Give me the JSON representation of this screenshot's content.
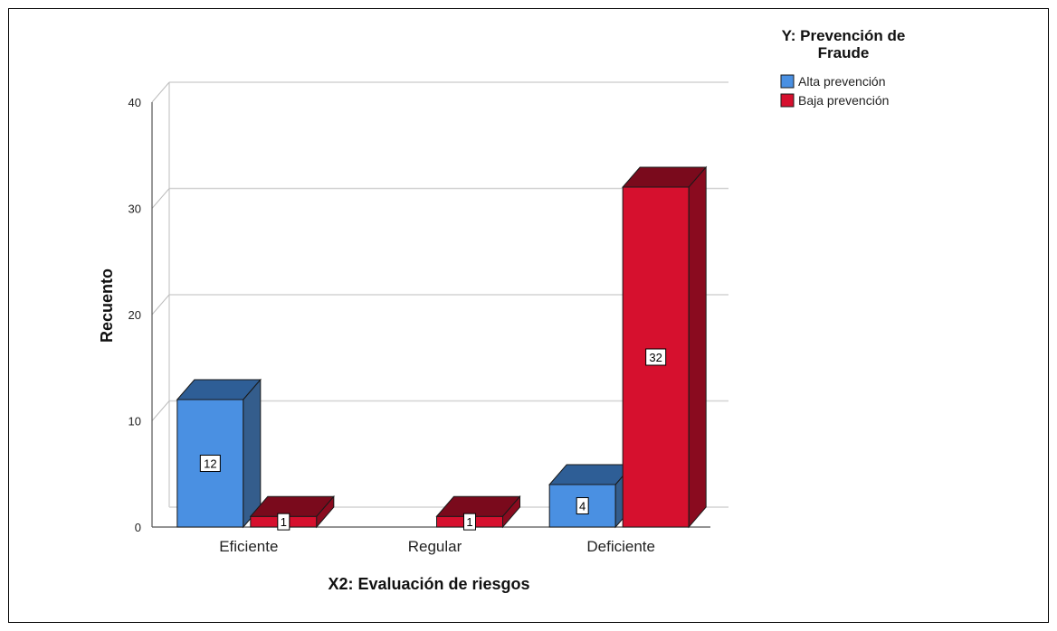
{
  "chart_data": {
    "type": "bar",
    "style": "3d",
    "title": "",
    "xlabel": "X2: Evaluación de riesgos",
    "ylabel": "Recuento",
    "categories": [
      "Eficiente",
      "Regular",
      "Deficiente"
    ],
    "series": [
      {
        "name": "Alta prevención",
        "values": [
          12,
          0,
          4
        ],
        "color": "#4a90e2",
        "top_color": "#2e5e96",
        "side_color": "#345d8c"
      },
      {
        "name": "Baja prevención",
        "values": [
          1,
          1,
          32
        ],
        "color": "#d6102e",
        "top_color": "#7a0a1c",
        "side_color": "#8a0b1f"
      }
    ],
    "data_labels": [
      [
        "12",
        "",
        "4"
      ],
      [
        "1",
        "1",
        "32"
      ]
    ],
    "ylim": [
      0,
      40
    ],
    "yticks": [
      0,
      10,
      20,
      30,
      40
    ],
    "grid": true,
    "legend": {
      "title": "Y: Prevención de Fraude",
      "title_lines": [
        "Y: Prevención de",
        "Fraude"
      ],
      "position": "top-right"
    }
  }
}
